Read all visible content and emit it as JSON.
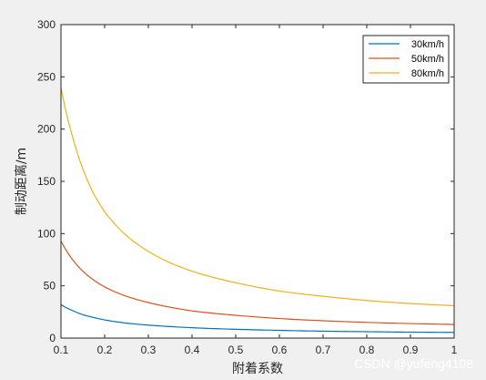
{
  "chart_data": {
    "type": "line",
    "title": "",
    "xlabel": "附着系数",
    "ylabel": "制动距离/m",
    "xlim": [
      0.1,
      1
    ],
    "ylim": [
      0,
      300
    ],
    "xticks": [
      0.1,
      0.2,
      0.3,
      0.4,
      0.5,
      0.6,
      0.7,
      0.8,
      0.9,
      1
    ],
    "xtick_labels": [
      "0.1",
      "0.2",
      "0.3",
      "0.4",
      "0.5",
      "0.6",
      "0.7",
      "0.8",
      "0.9",
      "1"
    ],
    "yticks": [
      0,
      50,
      100,
      150,
      200,
      250,
      300
    ],
    "ytick_labels": [
      "0",
      "50",
      "100",
      "150",
      "200",
      "250",
      "300"
    ],
    "grid": false,
    "legend_position": "top-right",
    "series": [
      {
        "name": "30km/h",
        "color": "#0072BD",
        "x": [
          0.1,
          0.125,
          0.15,
          0.175,
          0.2,
          0.25,
          0.3,
          0.35,
          0.4,
          0.5,
          0.6,
          0.7,
          0.8,
          0.9,
          1.0
        ],
        "y": [
          32.0,
          26.6,
          22.4,
          19.7,
          17.4,
          14.3,
          12.4,
          11.0,
          9.9,
          8.4,
          7.4,
          6.6,
          6.1,
          5.7,
          5.4
        ]
      },
      {
        "name": "50km/h",
        "color": "#D95319",
        "x": [
          0.1,
          0.125,
          0.15,
          0.175,
          0.2,
          0.25,
          0.3,
          0.35,
          0.4,
          0.5,
          0.6,
          0.7,
          0.8,
          0.9,
          1.0
        ],
        "y": [
          93.0,
          76.0,
          64.0,
          55.5,
          49.0,
          40.0,
          34.0,
          29.5,
          26.0,
          21.8,
          18.7,
          16.6,
          15.0,
          13.9,
          13.0
        ]
      },
      {
        "name": "80km/h",
        "color": "#EDB120",
        "x": [
          0.1,
          0.125,
          0.15,
          0.175,
          0.2,
          0.25,
          0.3,
          0.35,
          0.4,
          0.5,
          0.6,
          0.7,
          0.8,
          0.9,
          1.0
        ],
        "y": [
          240.0,
          195.0,
          162.0,
          138.0,
          121.0,
          98.0,
          83.0,
          72.0,
          64.0,
          53.0,
          45.0,
          40.0,
          36.0,
          33.0,
          31.0
        ]
      }
    ]
  },
  "watermark": "CSDN @yufeng4108"
}
